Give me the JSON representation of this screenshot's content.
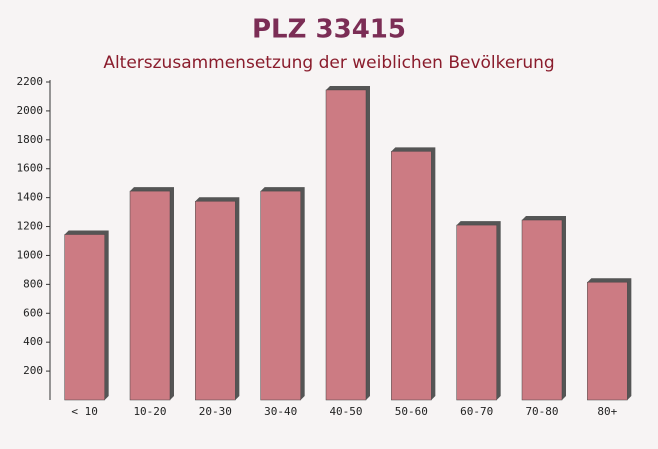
{
  "chart_data": {
    "type": "bar",
    "title": "PLZ 33415",
    "subtitle": "Alterszusammensetzung der weiblichen Bevölkerung",
    "categories": [
      "< 10",
      "10-20",
      "20-30",
      "30-40",
      "40-50",
      "50-60",
      "60-70",
      "70-80",
      "80+"
    ],
    "values": [
      1145,
      1445,
      1375,
      1445,
      2145,
      1720,
      1210,
      1245,
      815
    ],
    "color": "#c4656e",
    "ylim": [
      0,
      2200
    ],
    "yticks": [
      200,
      400,
      600,
      800,
      1000,
      1200,
      1400,
      1600,
      1800,
      2000,
      2200
    ]
  }
}
